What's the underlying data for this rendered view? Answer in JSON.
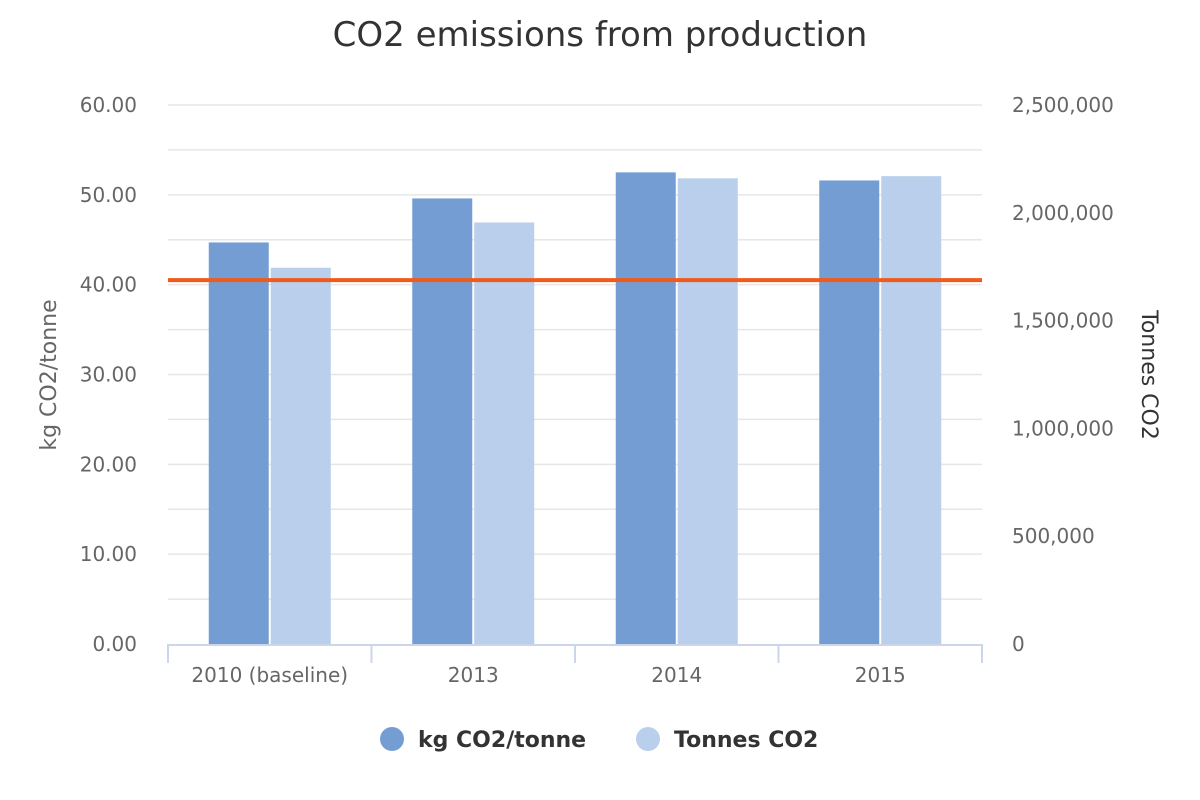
{
  "chart_data": {
    "type": "bar",
    "title": "CO2 emissions from production",
    "categories": [
      "2010 (baseline)",
      "2013",
      "2014",
      "2015"
    ],
    "series": [
      {
        "name": "kg CO2/tonne",
        "axis": "left",
        "values": [
          44.7,
          49.6,
          52.5,
          51.6
        ],
        "color": "#749ed3"
      },
      {
        "name": "Tonnes CO2",
        "axis": "right",
        "values": [
          1745000,
          1955000,
          2160000,
          2170000
        ],
        "color": "#b9cfeb"
      }
    ],
    "reference_line": {
      "axis": "left",
      "value": 40.5,
      "color": "#f05a1a"
    },
    "y_left": {
      "label": "kg CO2/tonne",
      "ylim": [
        0,
        60
      ],
      "ticks": [
        0,
        10,
        20,
        30,
        40,
        50,
        60
      ],
      "tick_labels": [
        "0.00",
        "10.00",
        "20.00",
        "30.00",
        "40.00",
        "50.00",
        "60.00"
      ]
    },
    "y_right": {
      "label": "Tonnes CO2",
      "ylim": [
        0,
        2500000
      ],
      "ticks": [
        0,
        500000,
        1000000,
        1500000,
        2000000,
        2500000
      ],
      "tick_labels": [
        "0",
        "500,000",
        "1,000,000",
        "1,500,000",
        "2,000,000",
        "2,500,000"
      ]
    },
    "grid": true,
    "legend_position": "bottom-center"
  }
}
